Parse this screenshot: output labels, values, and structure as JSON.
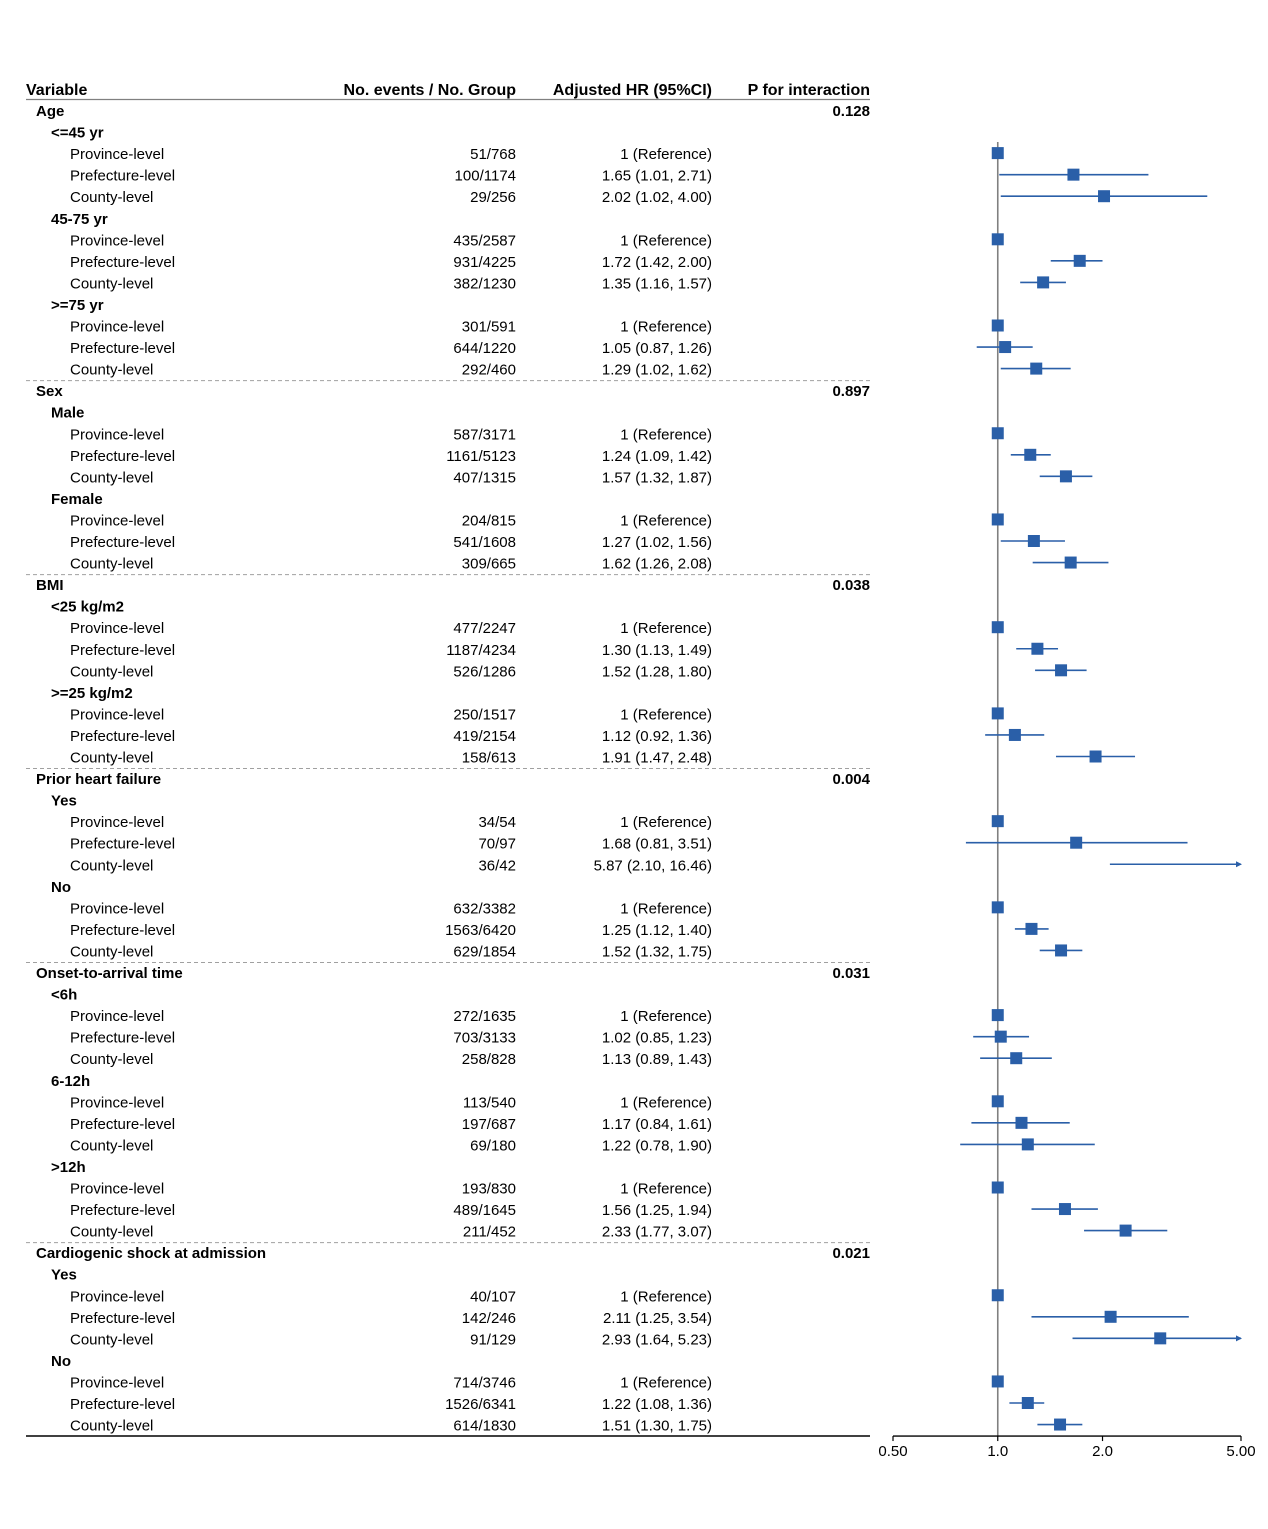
{
  "headers": {
    "variable": "Variable",
    "events": "No. events / No. Group",
    "hr": "Adjusted HR (95%CI)",
    "p": "P for interaction"
  },
  "colors": {
    "marker": "#2a5fa8",
    "ci": "#2a5fa8",
    "ref_line": "#808080",
    "separator": "#a0a0a0"
  },
  "chart_data": {
    "type": "forest",
    "x_scale": "log",
    "x_ticks": [
      0.5,
      1.0,
      2.0,
      5.0
    ],
    "x_tick_labels": [
      "0.50",
      "1.0",
      "2.0",
      "5.00"
    ],
    "xlim": [
      0.5,
      5.0
    ],
    "reference_value": 1.0,
    "groups": [
      {
        "name": "Age",
        "p": "0.128",
        "subgroups": [
          {
            "name": "<=45 yr",
            "rows": [
              {
                "label": "Province-level",
                "events": "51/768",
                "hr_text": "1 (Reference)",
                "hr": 1.0,
                "lo": null,
                "hi": null
              },
              {
                "label": "Prefecture-level",
                "events": "100/1174",
                "hr_text": "1.65 (1.01, 2.71)",
                "hr": 1.65,
                "lo": 1.01,
                "hi": 2.71
              },
              {
                "label": "County-level",
                "events": "29/256",
                "hr_text": "2.02 (1.02, 4.00)",
                "hr": 2.02,
                "lo": 1.02,
                "hi": 4.0
              }
            ]
          },
          {
            "name": "45-75 yr",
            "rows": [
              {
                "label": "Province-level",
                "events": "435/2587",
                "hr_text": "1 (Reference)",
                "hr": 1.0,
                "lo": null,
                "hi": null
              },
              {
                "label": "Prefecture-level",
                "events": "931/4225",
                "hr_text": "1.72 (1.42, 2.00)",
                "hr": 1.72,
                "lo": 1.42,
                "hi": 2.0
              },
              {
                "label": "County-level",
                "events": "382/1230",
                "hr_text": "1.35 (1.16, 1.57)",
                "hr": 1.35,
                "lo": 1.16,
                "hi": 1.57
              }
            ]
          },
          {
            "name": ">=75 yr",
            "rows": [
              {
                "label": "Province-level",
                "events": "301/591",
                "hr_text": "1 (Reference)",
                "hr": 1.0,
                "lo": null,
                "hi": null
              },
              {
                "label": "Prefecture-level",
                "events": "644/1220",
                "hr_text": "1.05 (0.87, 1.26)",
                "hr": 1.05,
                "lo": 0.87,
                "hi": 1.26
              },
              {
                "label": "County-level",
                "events": "292/460",
                "hr_text": "1.29 (1.02, 1.62)",
                "hr": 1.29,
                "lo": 1.02,
                "hi": 1.62
              }
            ]
          }
        ]
      },
      {
        "name": "Sex",
        "p": "0.897",
        "subgroups": [
          {
            "name": "Male",
            "rows": [
              {
                "label": "Province-level",
                "events": "587/3171",
                "hr_text": "1 (Reference)",
                "hr": 1.0,
                "lo": null,
                "hi": null
              },
              {
                "label": "Prefecture-level",
                "events": "1161/5123",
                "hr_text": "1.24 (1.09, 1.42)",
                "hr": 1.24,
                "lo": 1.09,
                "hi": 1.42
              },
              {
                "label": "County-level",
                "events": "407/1315",
                "hr_text": "1.57 (1.32, 1.87)",
                "hr": 1.57,
                "lo": 1.32,
                "hi": 1.87
              }
            ]
          },
          {
            "name": "Female",
            "rows": [
              {
                "label": "Province-level",
                "events": "204/815",
                "hr_text": "1 (Reference)",
                "hr": 1.0,
                "lo": null,
                "hi": null
              },
              {
                "label": "Prefecture-level",
                "events": "541/1608",
                "hr_text": "1.27 (1.02, 1.56)",
                "hr": 1.27,
                "lo": 1.02,
                "hi": 1.56
              },
              {
                "label": "County-level",
                "events": "309/665",
                "hr_text": "1.62 (1.26, 2.08)",
                "hr": 1.62,
                "lo": 1.26,
                "hi": 2.08
              }
            ]
          }
        ]
      },
      {
        "name": "BMI",
        "p": "0.038",
        "subgroups": [
          {
            "name": "<25 kg/m2",
            "rows": [
              {
                "label": "Province-level",
                "events": "477/2247",
                "hr_text": "1 (Reference)",
                "hr": 1.0,
                "lo": null,
                "hi": null
              },
              {
                "label": "Prefecture-level",
                "events": "1187/4234",
                "hr_text": "1.30 (1.13, 1.49)",
                "hr": 1.3,
                "lo": 1.13,
                "hi": 1.49
              },
              {
                "label": "County-level",
                "events": "526/1286",
                "hr_text": "1.52 (1.28, 1.80)",
                "hr": 1.52,
                "lo": 1.28,
                "hi": 1.8
              }
            ]
          },
          {
            "name": ">=25 kg/m2",
            "rows": [
              {
                "label": "Province-level",
                "events": "250/1517",
                "hr_text": "1 (Reference)",
                "hr": 1.0,
                "lo": null,
                "hi": null
              },
              {
                "label": "Prefecture-level",
                "events": "419/2154",
                "hr_text": "1.12 (0.92, 1.36)",
                "hr": 1.12,
                "lo": 0.92,
                "hi": 1.36
              },
              {
                "label": "County-level",
                "events": "158/613",
                "hr_text": "1.91 (1.47, 2.48)",
                "hr": 1.91,
                "lo": 1.47,
                "hi": 2.48
              }
            ]
          }
        ]
      },
      {
        "name": "Prior heart failure",
        "p": "0.004",
        "subgroups": [
          {
            "name": "Yes",
            "rows": [
              {
                "label": "Province-level",
                "events": "34/54",
                "hr_text": "1 (Reference)",
                "hr": 1.0,
                "lo": null,
                "hi": null
              },
              {
                "label": "Prefecture-level",
                "events": "70/97",
                "hr_text": "1.68 (0.81, 3.51)",
                "hr": 1.68,
                "lo": 0.81,
                "hi": 3.51
              },
              {
                "label": "County-level",
                "events": "36/42",
                "hr_text": "5.87 (2.10, 16.46)",
                "hr": 5.87,
                "lo": 2.1,
                "hi": 16.46
              }
            ]
          },
          {
            "name": "No",
            "rows": [
              {
                "label": "Province-level",
                "events": "632/3382",
                "hr_text": "1 (Reference)",
                "hr": 1.0,
                "lo": null,
                "hi": null
              },
              {
                "label": "Prefecture-level",
                "events": "1563/6420",
                "hr_text": "1.25 (1.12, 1.40)",
                "hr": 1.25,
                "lo": 1.12,
                "hi": 1.4
              },
              {
                "label": "County-level",
                "events": "629/1854",
                "hr_text": "1.52 (1.32, 1.75)",
                "hr": 1.52,
                "lo": 1.32,
                "hi": 1.75
              }
            ]
          }
        ]
      },
      {
        "name": "Onset-to-arrival time",
        "p": "0.031",
        "subgroups": [
          {
            "name": "<6h",
            "rows": [
              {
                "label": "Province-level",
                "events": "272/1635",
                "hr_text": "1 (Reference)",
                "hr": 1.0,
                "lo": null,
                "hi": null
              },
              {
                "label": "Prefecture-level",
                "events": "703/3133",
                "hr_text": "1.02 (0.85, 1.23)",
                "hr": 1.02,
                "lo": 0.85,
                "hi": 1.23
              },
              {
                "label": "County-level",
                "events": "258/828",
                "hr_text": "1.13 (0.89, 1.43)",
                "hr": 1.13,
                "lo": 0.89,
                "hi": 1.43
              }
            ]
          },
          {
            "name": "6-12h",
            "rows": [
              {
                "label": "Province-level",
                "events": "113/540",
                "hr_text": "1 (Reference)",
                "hr": 1.0,
                "lo": null,
                "hi": null
              },
              {
                "label": "Prefecture-level",
                "events": "197/687",
                "hr_text": "1.17 (0.84, 1.61)",
                "hr": 1.17,
                "lo": 0.84,
                "hi": 1.61
              },
              {
                "label": "County-level",
                "events": "69/180",
                "hr_text": "1.22 (0.78, 1.90)",
                "hr": 1.22,
                "lo": 0.78,
                "hi": 1.9
              }
            ]
          },
          {
            "name": ">12h",
            "rows": [
              {
                "label": "Province-level",
                "events": "193/830",
                "hr_text": "1 (Reference)",
                "hr": 1.0,
                "lo": null,
                "hi": null
              },
              {
                "label": "Prefecture-level",
                "events": "489/1645",
                "hr_text": "1.56 (1.25, 1.94)",
                "hr": 1.56,
                "lo": 1.25,
                "hi": 1.94
              },
              {
                "label": "County-level",
                "events": "211/452",
                "hr_text": "2.33 (1.77, 3.07)",
                "hr": 2.33,
                "lo": 1.77,
                "hi": 3.07
              }
            ]
          }
        ]
      },
      {
        "name": "Cardiogenic shock at admission",
        "p": "0.021",
        "subgroups": [
          {
            "name": "Yes",
            "rows": [
              {
                "label": "Province-level",
                "events": "40/107",
                "hr_text": "1 (Reference)",
                "hr": 1.0,
                "lo": null,
                "hi": null
              },
              {
                "label": "Prefecture-level",
                "events": "142/246",
                "hr_text": "2.11 (1.25, 3.54)",
                "hr": 2.11,
                "lo": 1.25,
                "hi": 3.54
              },
              {
                "label": "County-level",
                "events": "91/129",
                "hr_text": "2.93 (1.64, 5.23)",
                "hr": 2.93,
                "lo": 1.64,
                "hi": 5.23
              }
            ]
          },
          {
            "name": "No",
            "rows": [
              {
                "label": "Province-level",
                "events": "714/3746",
                "hr_text": "1 (Reference)",
                "hr": 1.0,
                "lo": null,
                "hi": null
              },
              {
                "label": "Prefecture-level",
                "events": "1526/6341",
                "hr_text": "1.22 (1.08, 1.36)",
                "hr": 1.22,
                "lo": 1.08,
                "hi": 1.36
              },
              {
                "label": "County-level",
                "events": "614/1830",
                "hr_text": "1.51 (1.30, 1.75)",
                "hr": 1.51,
                "lo": 1.3,
                "hi": 1.75
              }
            ]
          }
        ]
      }
    ]
  }
}
